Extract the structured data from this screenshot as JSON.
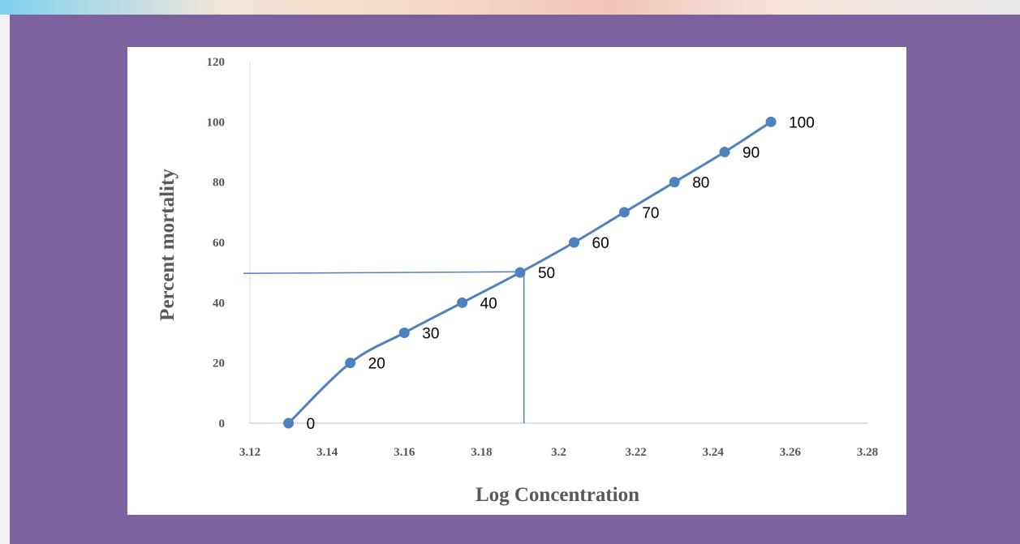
{
  "chart_data": {
    "type": "line",
    "title": "",
    "xlabel": "Log Concentration",
    "ylabel": "Percent mortality",
    "xlim": [
      3.12,
      3.28
    ],
    "ylim": [
      0,
      120
    ],
    "x_ticks": [
      "3.12",
      "3.14",
      "3.16",
      "3.18",
      "3.2",
      "3.22",
      "3.24",
      "3.26",
      "3.28"
    ],
    "y_ticks": [
      "0",
      "20",
      "40",
      "60",
      "80",
      "100",
      "120"
    ],
    "series": [
      {
        "x": [
          3.13,
          3.146,
          3.16,
          3.175,
          3.19,
          3.204,
          3.217,
          3.23,
          3.243,
          3.255
        ],
        "y": [
          0,
          20,
          30,
          40,
          50,
          60,
          70,
          80,
          90,
          100
        ],
        "labels": [
          "0",
          "20",
          "30",
          "40",
          "50",
          "60",
          "70",
          "80",
          "90",
          "100"
        ],
        "color": "#4f81bd",
        "smooth": true
      }
    ],
    "reference_lines": {
      "horizontal_y": 50,
      "vertical_x": 3.191,
      "color": "#4f81bd"
    },
    "grid": false,
    "legend": "none"
  }
}
